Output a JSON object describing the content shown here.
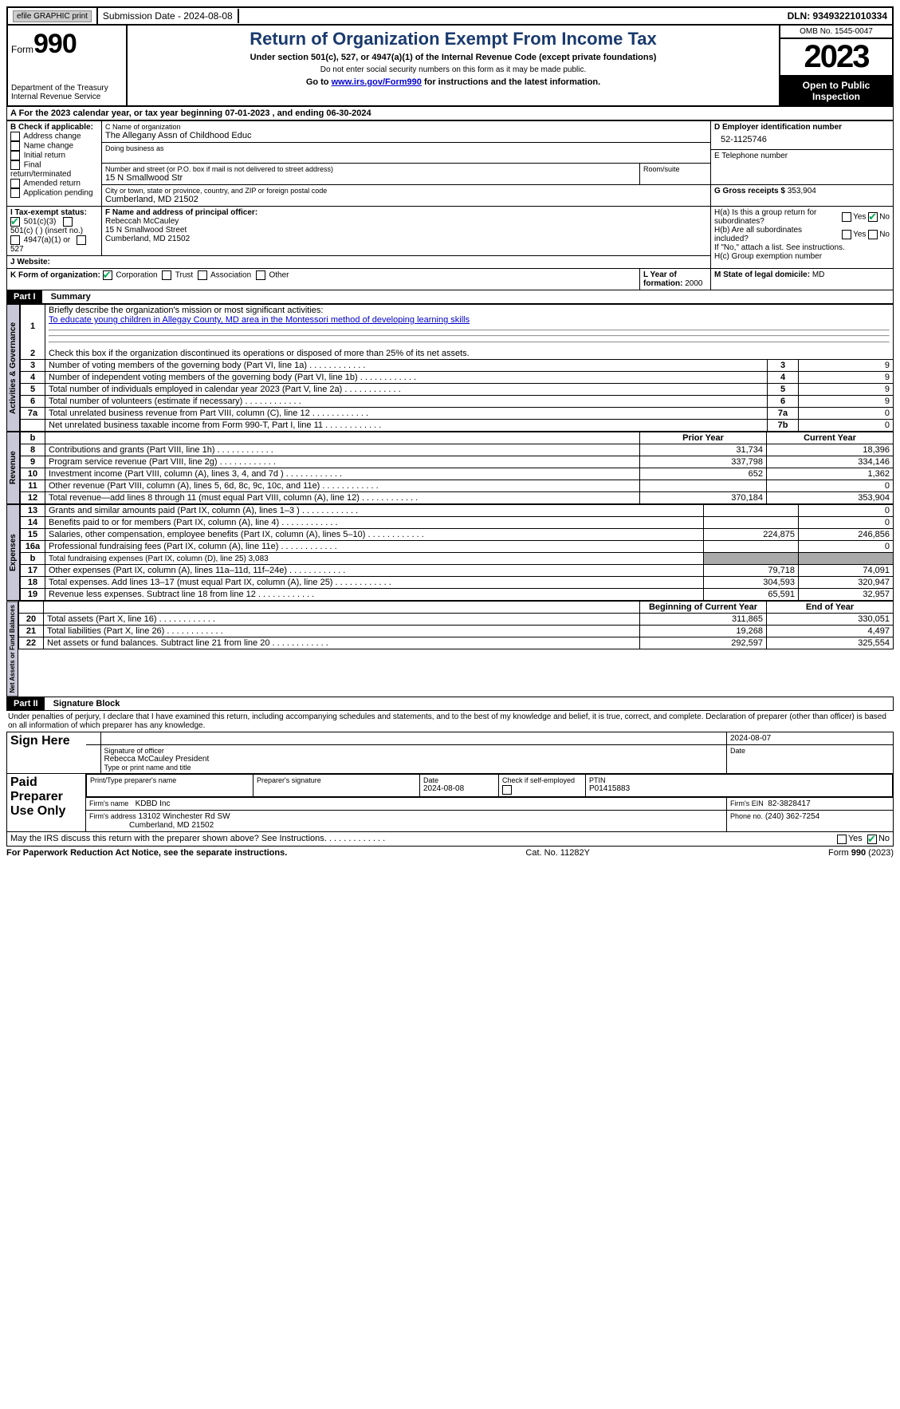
{
  "topbar": {
    "efile": "efile GRAPHIC print",
    "submission": "Submission Date - 2024-08-08",
    "dln": "DLN: 93493221010334"
  },
  "header": {
    "form_prefix": "Form",
    "form_number": "990",
    "dept": "Department of the Treasury",
    "irs": "Internal Revenue Service",
    "title": "Return of Organization Exempt From Income Tax",
    "subtitle": "Under section 501(c), 527, or 4947(a)(1) of the Internal Revenue Code (except private foundations)",
    "warn": "Do not enter social security numbers on this form as it may be made public.",
    "goto": "Go to ",
    "goto_link": "www.irs.gov/Form990",
    "goto_suffix": " for instructions and the latest information.",
    "omb": "OMB No. 1545-0047",
    "year": "2023",
    "open": "Open to Public Inspection"
  },
  "sectionA": {
    "prefix": "A For the 2023 calendar year, or tax year beginning ",
    "begin": "07-01-2023",
    "mid": "  , and ending ",
    "end": "06-30-2024"
  },
  "boxB": {
    "label": "B Check if applicable:",
    "items": [
      "Address change",
      "Name change",
      "Initial return",
      "Final return/terminated",
      "Amended return",
      "Application pending"
    ]
  },
  "boxC": {
    "name_label": "C Name of organization",
    "name": "The Allegany Assn of Childhood Educ",
    "dba_label": "Doing business as",
    "addr_label": "Number and street (or P.O. box if mail is not delivered to street address)",
    "addr": "15 N Smallwood Str",
    "room_label": "Room/suite",
    "city_label": "City or town, state or province, country, and ZIP or foreign postal code",
    "city": "Cumberland, MD  21502"
  },
  "boxD": {
    "label": "D Employer identification number",
    "value": "52-1125746"
  },
  "boxE": {
    "label": "E Telephone number"
  },
  "boxG": {
    "label": "G Gross receipts $",
    "value": "353,904"
  },
  "boxF": {
    "label": "F  Name and address of principal officer:",
    "name": "Rebeccah McCauley",
    "addr1": "15 N Smallwood Street",
    "addr2": "Cumberland, MD  21502"
  },
  "boxH": {
    "ha": "H(a)  Is this a group return for subordinates?",
    "hb": "H(b)  Are all subordinates included?",
    "hb_note": "If \"No,\" attach a list. See instructions.",
    "hc": "H(c)  Group exemption number"
  },
  "boxI": {
    "label": "I  Tax-exempt status:",
    "opts": [
      "501(c)(3)",
      "501(c) (  ) (insert no.)",
      "4947(a)(1) or",
      "527"
    ]
  },
  "boxJ": {
    "label": "J  Website:"
  },
  "boxK": {
    "label": "K Form of organization:",
    "opts": [
      "Corporation",
      "Trust",
      "Association",
      "Other"
    ]
  },
  "boxL": {
    "label": "L Year of formation:",
    "value": "2000"
  },
  "boxM": {
    "label": "M State of legal domicile:",
    "value": "MD"
  },
  "part1": {
    "header": "Part I",
    "title": "Summary"
  },
  "mission": {
    "label": "Briefly describe the organization's mission or most significant activities:",
    "text": "To educate young children in Allegay County, MD area in the Montessori method of developing learning skills"
  },
  "line2": "Check this box       if the organization discontinued its operations or disposed of more than 25% of its net assets.",
  "gov_rows": [
    {
      "n": "3",
      "d": "Number of voting members of the governing body (Part VI, line 1a)",
      "box": "3",
      "v": "9"
    },
    {
      "n": "4",
      "d": "Number of independent voting members of the governing body (Part VI, line 1b)",
      "box": "4",
      "v": "9"
    },
    {
      "n": "5",
      "d": "Total number of individuals employed in calendar year 2023 (Part V, line 2a)",
      "box": "5",
      "v": "9"
    },
    {
      "n": "6",
      "d": "Total number of volunteers (estimate if necessary)",
      "box": "6",
      "v": "9"
    },
    {
      "n": "7a",
      "d": "Total unrelated business revenue from Part VIII, column (C), line 12",
      "box": "7a",
      "v": "0"
    },
    {
      "n": "",
      "d": "Net unrelated business taxable income from Form 990-T, Part I, line 11",
      "box": "7b",
      "v": "0"
    }
  ],
  "rev_headers": {
    "b": "b",
    "prior": "Prior Year",
    "current": "Current Year"
  },
  "rev_rows": [
    {
      "n": "8",
      "d": "Contributions and grants (Part VIII, line 1h)",
      "p": "31,734",
      "c": "18,396"
    },
    {
      "n": "9",
      "d": "Program service revenue (Part VIII, line 2g)",
      "p": "337,798",
      "c": "334,146"
    },
    {
      "n": "10",
      "d": "Investment income (Part VIII, column (A), lines 3, 4, and 7d )",
      "p": "652",
      "c": "1,362"
    },
    {
      "n": "11",
      "d": "Other revenue (Part VIII, column (A), lines 5, 6d, 8c, 9c, 10c, and 11e)",
      "p": "",
      "c": "0"
    },
    {
      "n": "12",
      "d": "Total revenue—add lines 8 through 11 (must equal Part VIII, column (A), line 12)",
      "p": "370,184",
      "c": "353,904"
    }
  ],
  "exp_rows": [
    {
      "n": "13",
      "d": "Grants and similar amounts paid (Part IX, column (A), lines 1–3 )",
      "p": "",
      "c": "0"
    },
    {
      "n": "14",
      "d": "Benefits paid to or for members (Part IX, column (A), line 4)",
      "p": "",
      "c": "0"
    },
    {
      "n": "15",
      "d": "Salaries, other compensation, employee benefits (Part IX, column (A), lines 5–10)",
      "p": "224,875",
      "c": "246,856"
    },
    {
      "n": "16a",
      "d": "Professional fundraising fees (Part IX, column (A), line 11e)",
      "p": "",
      "c": "0"
    },
    {
      "n": "b",
      "d": "Total fundraising expenses (Part IX, column (D), line 25) 3,083",
      "shaded": true
    },
    {
      "n": "17",
      "d": "Other expenses (Part IX, column (A), lines 11a–11d, 11f–24e)",
      "p": "79,718",
      "c": "74,091"
    },
    {
      "n": "18",
      "d": "Total expenses. Add lines 13–17 (must equal Part IX, column (A), line 25)",
      "p": "304,593",
      "c": "320,947"
    },
    {
      "n": "19",
      "d": "Revenue less expenses. Subtract line 18 from line 12",
      "p": "65,591",
      "c": "32,957"
    }
  ],
  "net_headers": {
    "begin": "Beginning of Current Year",
    "end": "End of Year"
  },
  "net_rows": [
    {
      "n": "20",
      "d": "Total assets (Part X, line 16)",
      "p": "311,865",
      "c": "330,051"
    },
    {
      "n": "21",
      "d": "Total liabilities (Part X, line 26)",
      "p": "19,268",
      "c": "4,497"
    },
    {
      "n": "22",
      "d": "Net assets or fund balances. Subtract line 21 from line 20",
      "p": "292,597",
      "c": "325,554"
    }
  ],
  "part2": {
    "header": "Part II",
    "title": "Signature Block"
  },
  "perjury": "Under penalties of perjury, I declare that I have examined this return, including accompanying schedules and statements, and to the best of my knowledge and belief, it is true, correct, and complete. Declaration of preparer (other than officer) is based on all information of which preparer has any knowledge.",
  "sign": {
    "here": "Sign Here",
    "sig_date": "2024-08-07",
    "sig_label": "Signature of officer",
    "date_label": "Date",
    "name": "Rebecca McCauley  President",
    "name_label": "Type or print name and title"
  },
  "paid": {
    "label": "Paid Preparer Use Only",
    "print_label": "Print/Type preparer's name",
    "sig_label": "Preparer's signature",
    "date_label": "Date",
    "date": "2024-08-08",
    "check_label": "Check         if self-employed",
    "ptin_label": "PTIN",
    "ptin": "P01415883",
    "firm_label": "Firm's name",
    "firm": "KDBD Inc",
    "ein_label": "Firm's EIN",
    "ein": "82-3828417",
    "addr_label": "Firm's address",
    "addr1": "13102 Winchester Rd SW",
    "addr2": "Cumberland, MD  21502",
    "phone_label": "Phone no.",
    "phone": "(240) 362-7254"
  },
  "discuss": "May the IRS discuss this return with the preparer shown above? See Instructions.",
  "footer": {
    "left": "For Paperwork Reduction Act Notice, see the separate instructions.",
    "mid": "Cat. No. 11282Y",
    "right": "Form 990 (2023)"
  },
  "yn": {
    "yes": "Yes",
    "no": "No"
  }
}
